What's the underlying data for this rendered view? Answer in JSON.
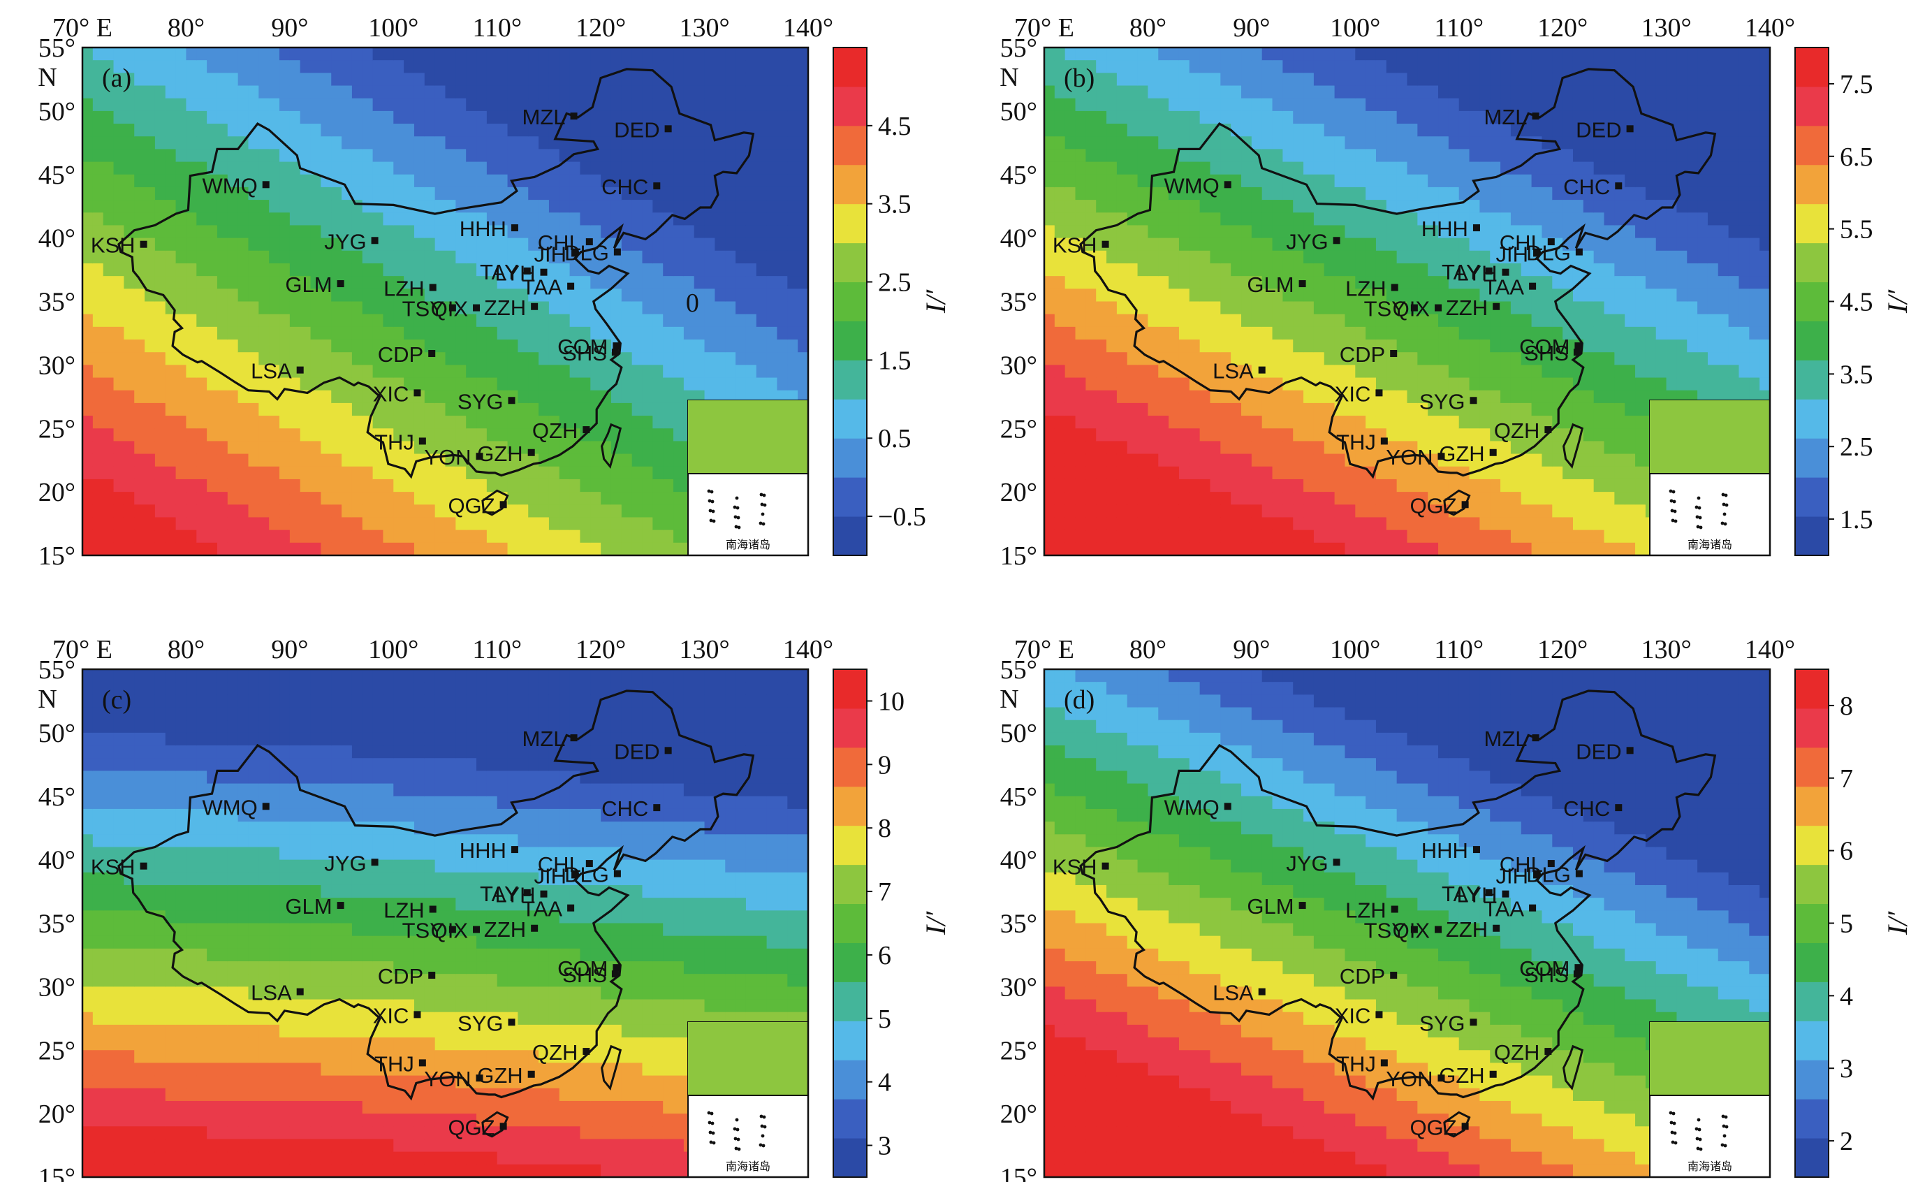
{
  "figure": {
    "lon_ticks": [
      "70° E",
      "80°",
      "90°",
      "100°",
      "110°",
      "120°",
      "130°",
      "140°"
    ],
    "lat_ticks": [
      "55°",
      "50°",
      "45°",
      "40°",
      "35°",
      "30°",
      "25°",
      "20°",
      "15°"
    ],
    "lat_unit": "N",
    "colorbar_title": "I/′",
    "inset_label": "南海诸岛",
    "stations": [
      {
        "code": "MZL",
        "lon": 117.4,
        "lat": 49.6
      },
      {
        "code": "DED",
        "lon": 126.5,
        "lat": 48.6
      },
      {
        "code": "CHC",
        "lon": 125.4,
        "lat": 44.1
      },
      {
        "code": "WMQ",
        "lon": 87.7,
        "lat": 44.2
      },
      {
        "code": "HHH",
        "lon": 111.7,
        "lat": 40.8
      },
      {
        "code": "CHL",
        "lon": 118.9,
        "lat": 39.7
      },
      {
        "code": "JIH",
        "lon": 117.5,
        "lat": 38.8
      },
      {
        "code": "DLG",
        "lon": 121.6,
        "lat": 38.9
      },
      {
        "code": "KSH",
        "lon": 75.9,
        "lat": 39.5
      },
      {
        "code": "JYG",
        "lon": 98.2,
        "lat": 39.8
      },
      {
        "code": "GLM",
        "lon": 94.9,
        "lat": 36.4
      },
      {
        "code": "LZH",
        "lon": 103.8,
        "lat": 36.1
      },
      {
        "code": "TAY",
        "lon": 112.9,
        "lat": 37.4
      },
      {
        "code": "LYH",
        "lon": 114.5,
        "lat": 37.3
      },
      {
        "code": "TAA",
        "lon": 117.1,
        "lat": 36.2
      },
      {
        "code": "TSY",
        "lon": 105.7,
        "lat": 34.5
      },
      {
        "code": "QIX",
        "lon": 108.0,
        "lat": 34.5
      },
      {
        "code": "ZZH",
        "lon": 113.6,
        "lat": 34.6
      },
      {
        "code": "COM",
        "lon": 121.5,
        "lat": 31.5
      },
      {
        "code": "SHS",
        "lon": 121.4,
        "lat": 31.0
      },
      {
        "code": "CDP",
        "lon": 103.7,
        "lat": 30.9
      },
      {
        "code": "LSA",
        "lon": 91.0,
        "lat": 29.6
      },
      {
        "code": "SYG",
        "lon": 111.4,
        "lat": 27.2
      },
      {
        "code": "XIC",
        "lon": 102.3,
        "lat": 27.8
      },
      {
        "code": "QZH",
        "lon": 118.6,
        "lat": 24.9
      },
      {
        "code": "THJ",
        "lon": 102.8,
        "lat": 24.0
      },
      {
        "code": "YON",
        "lon": 108.3,
        "lat": 22.8
      },
      {
        "code": "GZH",
        "lon": 113.3,
        "lat": 23.1
      },
      {
        "code": "QGZ",
        "lon": 110.6,
        "lat": 19.0
      }
    ]
  },
  "panels": [
    {
      "label": "(a)",
      "colorbar_ticks": [
        "4.5",
        "3.5",
        "2.5",
        "1.5",
        "0.5",
        "−0.5"
      ],
      "colorbar_range": [
        -1,
        5.5
      ],
      "tick_values": [
        4.5,
        3.5,
        2.5,
        1.5,
        0.5,
        -0.5
      ],
      "contour_label": "0"
    },
    {
      "label": "(b)",
      "colorbar_ticks": [
        "7.5",
        "6.5",
        "5.5",
        "4.5",
        "3.5",
        "2.5",
        "1.5"
      ],
      "colorbar_range": [
        1,
        8
      ],
      "tick_values": [
        7.5,
        6.5,
        5.5,
        4.5,
        3.5,
        2.5,
        1.5
      ],
      "contour_label": ""
    },
    {
      "label": "(c)",
      "colorbar_ticks": [
        "10",
        "9",
        "8",
        "7",
        "6",
        "5",
        "4",
        "3"
      ],
      "colorbar_range": [
        2.5,
        10.5
      ],
      "tick_values": [
        10,
        9,
        8,
        7,
        6,
        5,
        4,
        3
      ],
      "contour_label": ""
    },
    {
      "label": "(d)",
      "colorbar_ticks": [
        "8",
        "7",
        "6",
        "5",
        "4",
        "3",
        "2"
      ],
      "colorbar_range": [
        1.5,
        8.5
      ],
      "tick_values": [
        8,
        7,
        6,
        5,
        4,
        3,
        2
      ],
      "contour_label": ""
    }
  ],
  "colors": {
    "bands_low_to_high": [
      "#2b4aa6",
      "#3a5fc0",
      "#4a8fd8",
      "#55b9e8",
      "#44b59a",
      "#3db04a",
      "#5dbb3a",
      "#8dc63f",
      "#e8e23a",
      "#f2a33a",
      "#f06a3a",
      "#ea3a4a",
      "#e82a2a"
    ]
  }
}
